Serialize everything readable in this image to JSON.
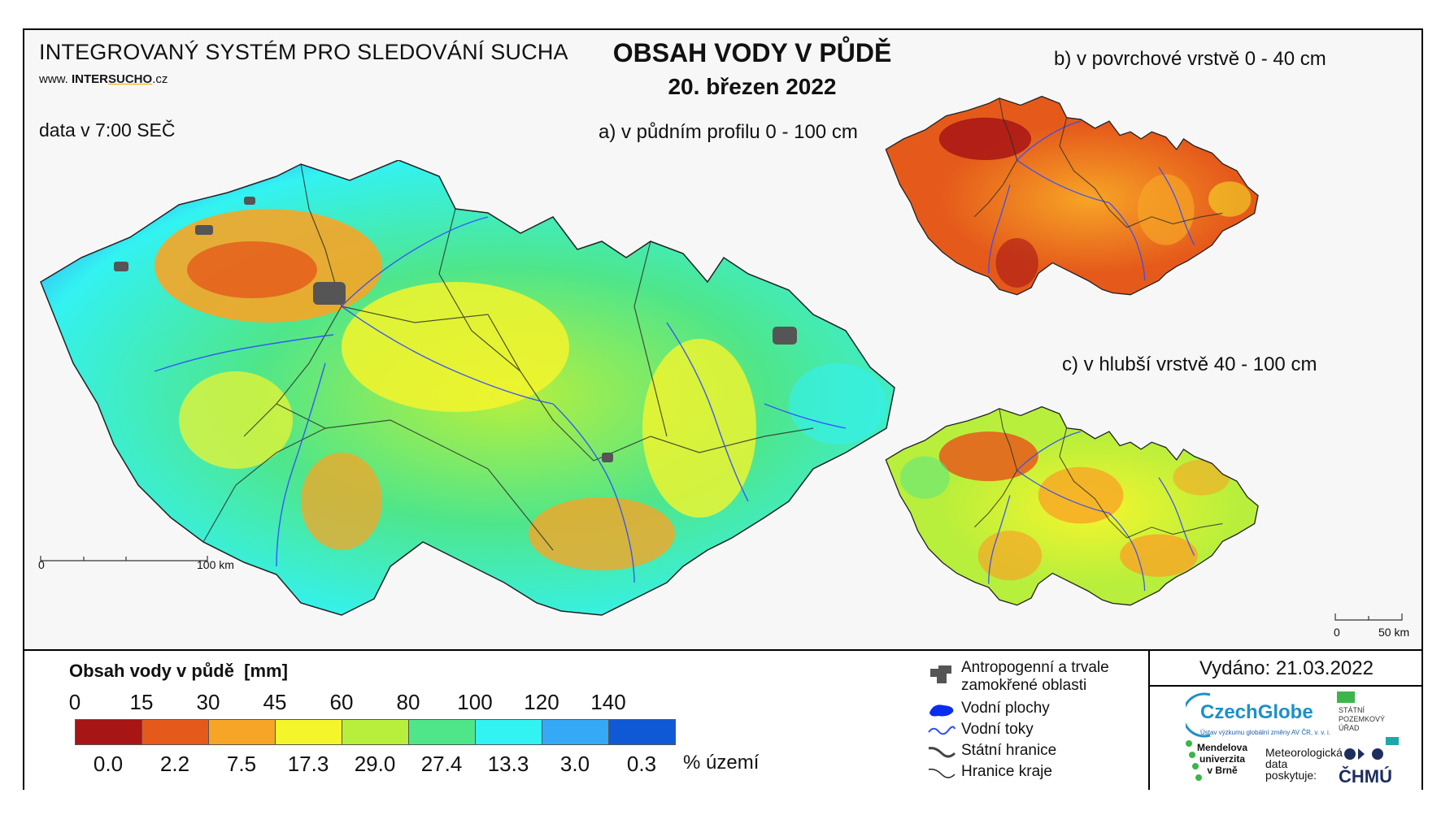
{
  "header": {
    "system_title": "INTEGROVANÝ SYSTÉM PRO SLEDOVÁNÍ SUCHA",
    "website_prefix": "www.",
    "website_inter": "INTER",
    "website_sucho": "SUCHO",
    "website_suffix": ".cz",
    "data_time": "data v 7:00 SEČ",
    "title": "OBSAH VODY V PŮDĚ",
    "date": "20. březen 2022"
  },
  "maps": {
    "a_label": "a) v půdním profilu 0 - 100 cm",
    "b_label": "b) v povrchové vrstvě 0 - 40 cm",
    "c_label": "c) v hlubší vrstvě 40 - 100 cm",
    "scale_a": {
      "zero": "0",
      "end": "100 km"
    },
    "scale_c": {
      "zero": "0",
      "end": "50 km"
    }
  },
  "legend": {
    "title": "Obsah vody v půdě",
    "unit": "[mm]",
    "ticks": [
      "0",
      "15",
      "30",
      "45",
      "60",
      "80",
      "100",
      "120",
      "140"
    ],
    "classes": [
      {
        "color": "#a81515",
        "percent": "0.0"
      },
      {
        "color": "#e55a1b",
        "percent": "2.2"
      },
      {
        "color": "#f7a526",
        "percent": "7.5"
      },
      {
        "color": "#f5f52c",
        "percent": "17.3"
      },
      {
        "color": "#b8ef3c",
        "percent": "29.0"
      },
      {
        "color": "#4fe68a",
        "percent": "27.4"
      },
      {
        "color": "#33f2f2",
        "percent": "13.3"
      },
      {
        "color": "#35a9f5",
        "percent": "3.0"
      },
      {
        "color": "#1059d6",
        "percent": "0.3"
      }
    ],
    "percent_unit": "% území",
    "symbols": [
      {
        "label": "Antropogenní a trvale",
        "label2": "zamokřené oblasti",
        "icon": "urban-area-icon"
      },
      {
        "label": "Vodní plochy",
        "icon": "water-body-icon"
      },
      {
        "label": "Vodní toky",
        "icon": "river-icon"
      },
      {
        "label": "Státní hranice",
        "icon": "state-border-icon"
      },
      {
        "label": "Hranice kraje",
        "icon": "region-border-icon"
      }
    ]
  },
  "footer": {
    "issued": "Vydáno: 21.03.2022",
    "czechglobe": "CzechGlobe",
    "czechglobe_sub": "Ústav výzkumu globální změny AV ČR, v. v. i.",
    "spu_line1": "STÁTNÍ",
    "spu_line2": "POZEMKOVÝ",
    "spu_line3": "ÚŘAD",
    "mendel_line1": "Mendelova",
    "mendel_line2": "univerzita",
    "mendel_line3": "v Brně",
    "meteo_line1": "Meteorologická",
    "meteo_line2": "data",
    "meteo_line3": "poskytuje:",
    "chmu": "ČHMÚ"
  }
}
